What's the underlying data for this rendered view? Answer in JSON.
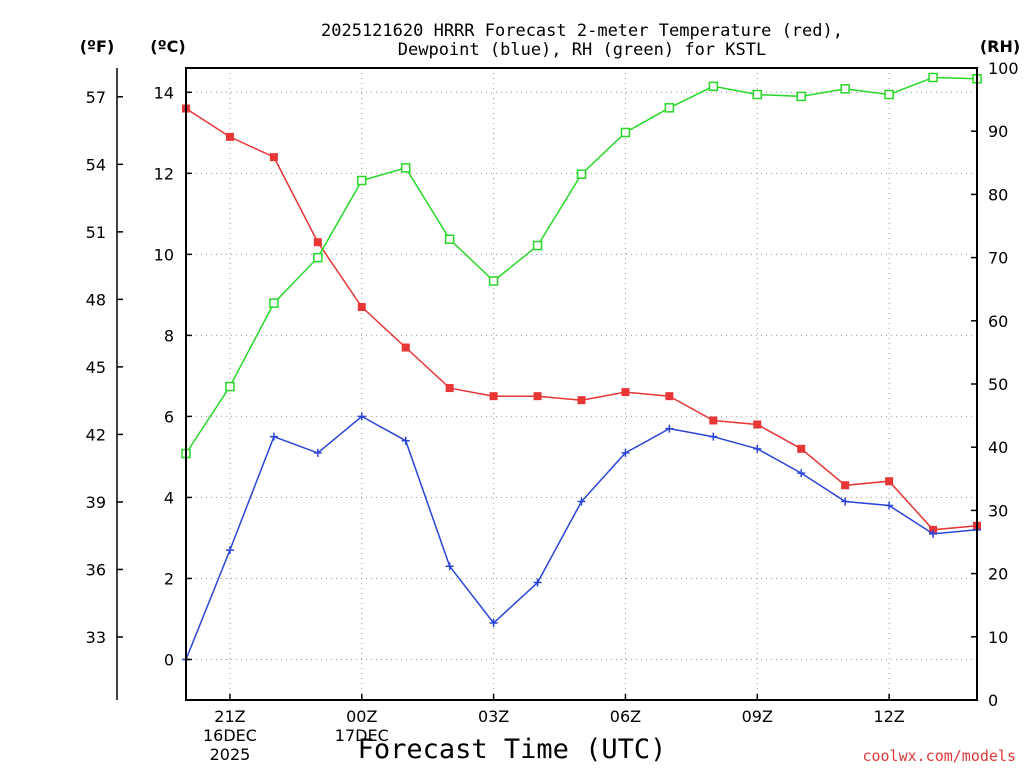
{
  "chart_data": {
    "type": "line",
    "title_line1": "2025121620 HRRR Forecast 2-meter Temperature (red),",
    "title_line2": "Dewpoint (blue), RH (green) for KSTL",
    "xlabel": "Forecast Time (UTC)",
    "credit": "coolwx.com/models",
    "units": {
      "f": "(ºF)",
      "c": "(ºC)",
      "rh": "(RH)"
    },
    "hours": [
      20,
      21,
      22,
      23,
      24,
      25,
      26,
      27,
      28,
      29,
      30,
      31,
      32,
      33,
      34,
      35,
      36,
      37,
      38
    ],
    "x_ticks": [
      {
        "hour": 21,
        "l1": "21Z",
        "l2": "16DEC",
        "l3": "2025"
      },
      {
        "hour": 24,
        "l1": "00Z",
        "l2": "17DEC",
        "l3": ""
      },
      {
        "hour": 27,
        "l1": "03Z",
        "l2": "",
        "l3": ""
      },
      {
        "hour": 30,
        "l1": "06Z",
        "l2": "",
        "l3": ""
      },
      {
        "hour": 33,
        "l1": "09Z",
        "l2": "",
        "l3": ""
      },
      {
        "hour": 36,
        "l1": "12Z",
        "l2": "",
        "l3": ""
      }
    ],
    "c_axis": {
      "min": -1,
      "max": 14.6,
      "ticks": [
        "0",
        "2",
        "4",
        "6",
        "8",
        "10",
        "12",
        "14"
      ]
    },
    "f_axis": {
      "ticks": [
        "33",
        "36",
        "39",
        "42",
        "45",
        "48",
        "51",
        "54",
        "57"
      ]
    },
    "rh_axis": {
      "min": 0,
      "max": 100,
      "ticks": [
        "0",
        "10",
        "20",
        "30",
        "40",
        "50",
        "60",
        "70",
        "80",
        "90",
        "100"
      ]
    },
    "series": [
      {
        "name": "Temperature",
        "unit": "C",
        "color": "#e83535",
        "marker": "filled-square",
        "values": [
          13.6,
          12.9,
          12.4,
          10.3,
          8.7,
          7.7,
          6.7,
          6.5,
          6.5,
          6.4,
          6.6,
          6.5,
          5.9,
          5.8,
          5.2,
          4.3,
          4.4,
          3.2,
          3.3
        ]
      },
      {
        "name": "Dewpoint",
        "unit": "C",
        "color": "#2a44d8",
        "marker": "plus",
        "values": [
          0.0,
          2.7,
          5.5,
          5.1,
          6.0,
          5.4,
          2.3,
          0.9,
          1.9,
          3.9,
          5.1,
          5.7,
          5.5,
          5.2,
          4.6,
          3.9,
          3.8,
          3.1,
          3.2
        ]
      },
      {
        "name": "RH",
        "unit": "%",
        "color": "#27d827",
        "marker": "open-square",
        "values": [
          39.0,
          49.6,
          62.8,
          70.0,
          82.2,
          84.2,
          72.9,
          66.3,
          71.9,
          83.2,
          89.8,
          93.7,
          97.1,
          95.8,
          95.5,
          96.7,
          95.8,
          98.5,
          98.3
        ]
      }
    ]
  }
}
